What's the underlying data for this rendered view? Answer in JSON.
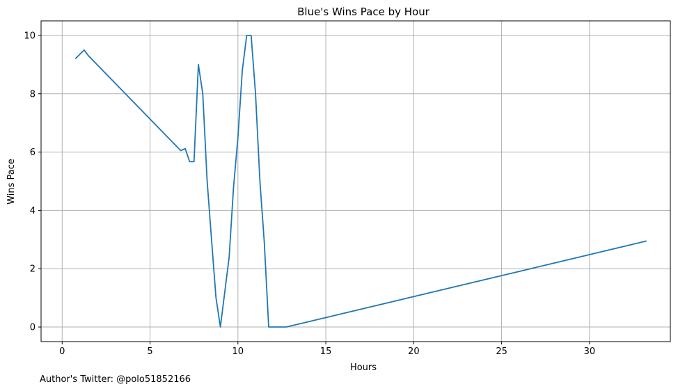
{
  "chart_data": {
    "type": "line",
    "title": "Blue's Wins Pace by Hour",
    "xlabel": "Hours",
    "ylabel": "Wins Pace",
    "xlim": [
      -1.2,
      34.6
    ],
    "ylim": [
      -0.5,
      10.5
    ],
    "xticks": [
      0,
      5,
      10,
      15,
      20,
      25,
      30
    ],
    "yticks": [
      0,
      2,
      4,
      6,
      8,
      10
    ],
    "grid": true,
    "line_color": "#1f77b4",
    "series": [
      {
        "x": [
          0.75,
          1.25,
          1.5,
          6.75,
          7.0,
          7.25,
          7.5,
          7.75,
          8.0,
          8.25,
          8.5,
          8.75,
          9.0,
          9.25,
          9.5,
          9.75,
          10.0,
          10.25,
          10.5,
          10.75,
          11.0,
          11.25,
          11.5,
          11.75,
          12.0,
          12.75,
          33.25
        ],
        "y": [
          9.2,
          9.5,
          9.3,
          6.05,
          6.12,
          5.67,
          5.67,
          9.0,
          8.0,
          5.0,
          3.0,
          1.0,
          0.0,
          1.2,
          2.4,
          4.8,
          6.5,
          8.8,
          10.0,
          10.0,
          8.0,
          5.0,
          2.9,
          0.0,
          0.0,
          0.0,
          2.95
        ]
      }
    ]
  },
  "footer": {
    "text": "Author's Twitter: @polo51852166"
  }
}
